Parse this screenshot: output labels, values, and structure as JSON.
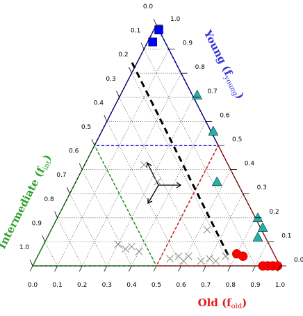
{
  "chart_data": {
    "type": "ternary",
    "old_axis": {
      "prefix": "Old (f",
      "subscript": "old",
      "suffix": ")",
      "color": "#e31a1c"
    },
    "young_axis": {
      "prefix": "Young (f",
      "subscript": "young",
      "suffix": ")",
      "color": "#3333dd"
    },
    "int_axis": {
      "prefix": "Intermediate (f",
      "subscript": "int",
      "suffix": ")",
      "color": "#2ca02c"
    },
    "old_ticks": [
      {
        "value": 0,
        "label": "0.0"
      },
      0.1,
      0.2,
      0.3,
      0.4,
      0.5,
      0.6,
      0.7,
      0.8,
      0.9,
      {
        "value": 1,
        "label": "1.0"
      }
    ],
    "young_ticks": [
      {
        "value": 0,
        "label": "0.0"
      },
      0.1,
      0.2,
      0.3,
      0.4,
      0.5,
      0.6,
      0.7,
      0.8,
      0.9,
      {
        "value": 1,
        "label": "1.0"
      }
    ],
    "int_ticks": [
      {
        "value": 0,
        "label": "0.0"
      },
      0.1,
      0.2,
      0.3,
      0.4,
      0.5,
      0.6,
      0.7,
      0.8,
      0.9,
      {
        "value": 1,
        "label": "1.0"
      }
    ],
    "grid": true,
    "series": [
      {
        "marker": "square",
        "color": "#0000ff",
        "old": [
          0.02,
          0.02
        ],
        "young": [
          0.98,
          0.93
        ]
      },
      {
        "marker": "triangle",
        "color": "#20b2aa",
        "old": [
          0.31,
          0.45,
          0.57,
          0.81,
          0.85,
          0.85
        ],
        "young": [
          0.71,
          0.56,
          0.35,
          0.2,
          0.16,
          0.12
        ]
      },
      {
        "marker": "circle",
        "color": "#ff0000",
        "old": [
          0.8,
          0.83,
          0.93,
          0.95,
          0.97,
          0.99
        ],
        "young": [
          0.05,
          0.04,
          0,
          0,
          0,
          0
        ]
      },
      {
        "marker": "cross",
        "color": "#888888",
        "old": [
          0.24,
          0.33,
          0.63,
          0.3,
          0.34,
          0.36,
          0.4,
          0.54,
          0.57,
          0.6,
          0.61,
          0.67,
          0.7,
          0.73,
          0.76
        ],
        "young": [
          0.42,
          0.35,
          0.15,
          0.09,
          0.07,
          0.08,
          0.06,
          0.03,
          0.04,
          0.02,
          0.04,
          0.02,
          0.03,
          0.02,
          0.04
        ]
      }
    ]
  }
}
